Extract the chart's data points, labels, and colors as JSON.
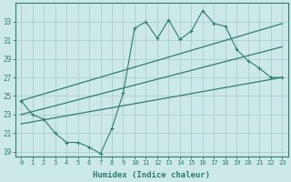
{
  "main_x": [
    0,
    1,
    2,
    3,
    4,
    5,
    6,
    7,
    8,
    9,
    10,
    11,
    12,
    13,
    14,
    15,
    16,
    17,
    18,
    19,
    20,
    21,
    22,
    23
  ],
  "main_y": [
    24.5,
    23.0,
    22.5,
    21.0,
    20.0,
    20.0,
    19.5,
    18.8,
    21.5,
    25.3,
    32.3,
    33.0,
    31.2,
    33.2,
    31.1,
    32.0,
    34.2,
    32.8,
    32.5,
    30.0,
    28.8,
    28.0,
    27.0,
    27.0
  ],
  "upper_line_x": [
    0,
    23
  ],
  "upper_line_y": [
    24.5,
    32.8
  ],
  "middle_line_x": [
    0,
    23
  ],
  "middle_line_y": [
    23.0,
    30.3
  ],
  "lower_line_x": [
    0,
    23
  ],
  "lower_line_y": [
    22.0,
    27.0
  ],
  "line_color": "#2e7d6e",
  "bg_color": "#cce8e8",
  "grid_color": "#aacece",
  "xlabel": "Humidex (Indice chaleur)",
  "ylim": [
    18.5,
    35.0
  ],
  "xlim": [
    -0.5,
    23.5
  ],
  "yticks": [
    19,
    21,
    23,
    25,
    27,
    29,
    31,
    33
  ],
  "xticks": [
    0,
    1,
    2,
    3,
    4,
    5,
    6,
    7,
    8,
    9,
    10,
    11,
    12,
    13,
    14,
    15,
    16,
    17,
    18,
    19,
    20,
    21,
    22,
    23
  ]
}
